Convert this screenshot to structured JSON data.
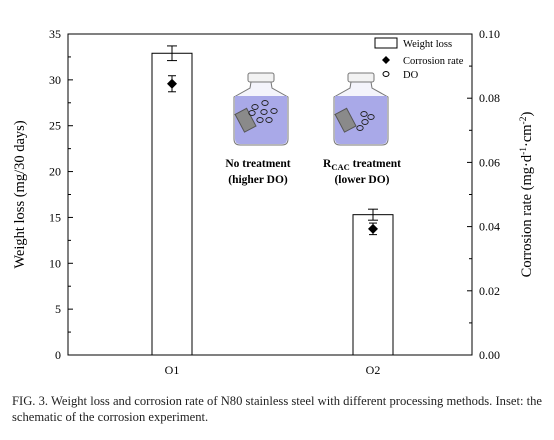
{
  "chart_data": {
    "type": "bar",
    "categories": [
      "O1",
      "O2"
    ],
    "series": [
      {
        "name": "Weight loss",
        "axis": "left",
        "kind": "bar",
        "values": [
          32.9,
          15.3
        ],
        "errors": [
          0.8,
          0.6
        ]
      },
      {
        "name": "Corrosion rate",
        "axis": "right",
        "kind": "point",
        "values": [
          0.0845,
          0.0393
        ],
        "errors": [
          0.0025,
          0.0018
        ]
      }
    ],
    "ylabel": "Weight loss (mg/30 days)",
    "y2label_parts": [
      "Corrosion rate (mg·d",
      "-1",
      "·cm",
      "-2",
      ")"
    ],
    "ylim": [
      0,
      35
    ],
    "y2lim": [
      0,
      0.1
    ],
    "yticks": [
      "0",
      "5",
      "10",
      "15",
      "20",
      "25",
      "30",
      "35"
    ],
    "y2ticks": [
      "0.00",
      "0.02",
      "0.04",
      "0.06",
      "0.08",
      "0.10"
    ],
    "grid": false,
    "legend_position": "top-right",
    "legend": [
      "Weight loss",
      "Corrosion rate",
      "DO"
    ]
  },
  "inset": {
    "left_label": [
      "No treatment",
      "(higher DO)"
    ],
    "right_label_prefix": "R",
    "right_label_sub": "CAC",
    "right_label_suffix": " treatment",
    "right_label_line2": "(lower DO)"
  },
  "caption": "FIG. 3. Weight loss and corrosion rate of N80 stainless steel with different processing methods. Inset: the schematic of the corrosion experiment.",
  "colors": {
    "bar_fill": "#ffffff",
    "axis": "#000000",
    "bottle": "#a9a9e8",
    "bottle_dark": "#8585d0",
    "specimen": "#8a8a8a"
  }
}
